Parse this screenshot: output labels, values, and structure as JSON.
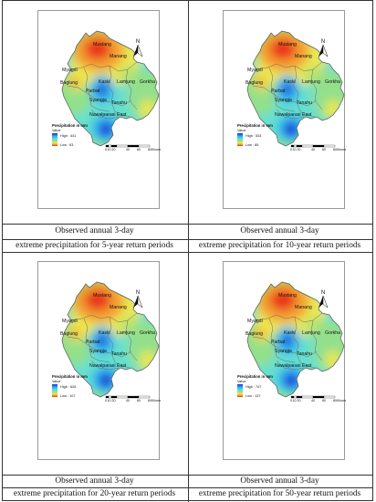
{
  "panels": [
    {
      "caption_line1": "Observed annual 3-day",
      "caption_line2": "extreme precipitation for 5-year return periods",
      "legend_high": "High : 441",
      "legend_low": "Low : 63"
    },
    {
      "caption_line1": "Observed annual 3-day",
      "caption_line2": "extreme precipitation for 10-year return periods",
      "legend_high": "High : 533",
      "legend_low": "Low : 85"
    },
    {
      "caption_line1": "Observed annual 3-day",
      "caption_line2": "extreme precipitation for 20-year return periods",
      "legend_high": "High : 626",
      "legend_low": "Low : 107"
    },
    {
      "caption_line1": "Observed annual 3-day",
      "caption_line2": "extreme precipitation for 50-year return periods",
      "legend_high": "High : 747",
      "legend_low": "Low : 137"
    }
  ],
  "map": {
    "legend_title": "Precipitation in mm",
    "legend_subtitle": "Value",
    "north_label": "N",
    "scale_ticks": [
      "0",
      "10 20",
      "40",
      "60",
      "80"
    ],
    "scale_unit": "Kilometers",
    "districts": [
      "Mustang",
      "Manang",
      "Myagdi",
      "Baglung",
      "Kaski",
      "Lamjung",
      "Gorkha",
      "Parbat",
      "Syangja",
      "Tanahu",
      "Nawalparasi East"
    ],
    "colors": {
      "high": "#1a2fd6",
      "mid_blue": "#2fb7f2",
      "cyan": "#5fe0d6",
      "green": "#9be07f",
      "yellow": "#f2e84a",
      "orange": "#f39a2e",
      "low": "#e8301c"
    }
  }
}
